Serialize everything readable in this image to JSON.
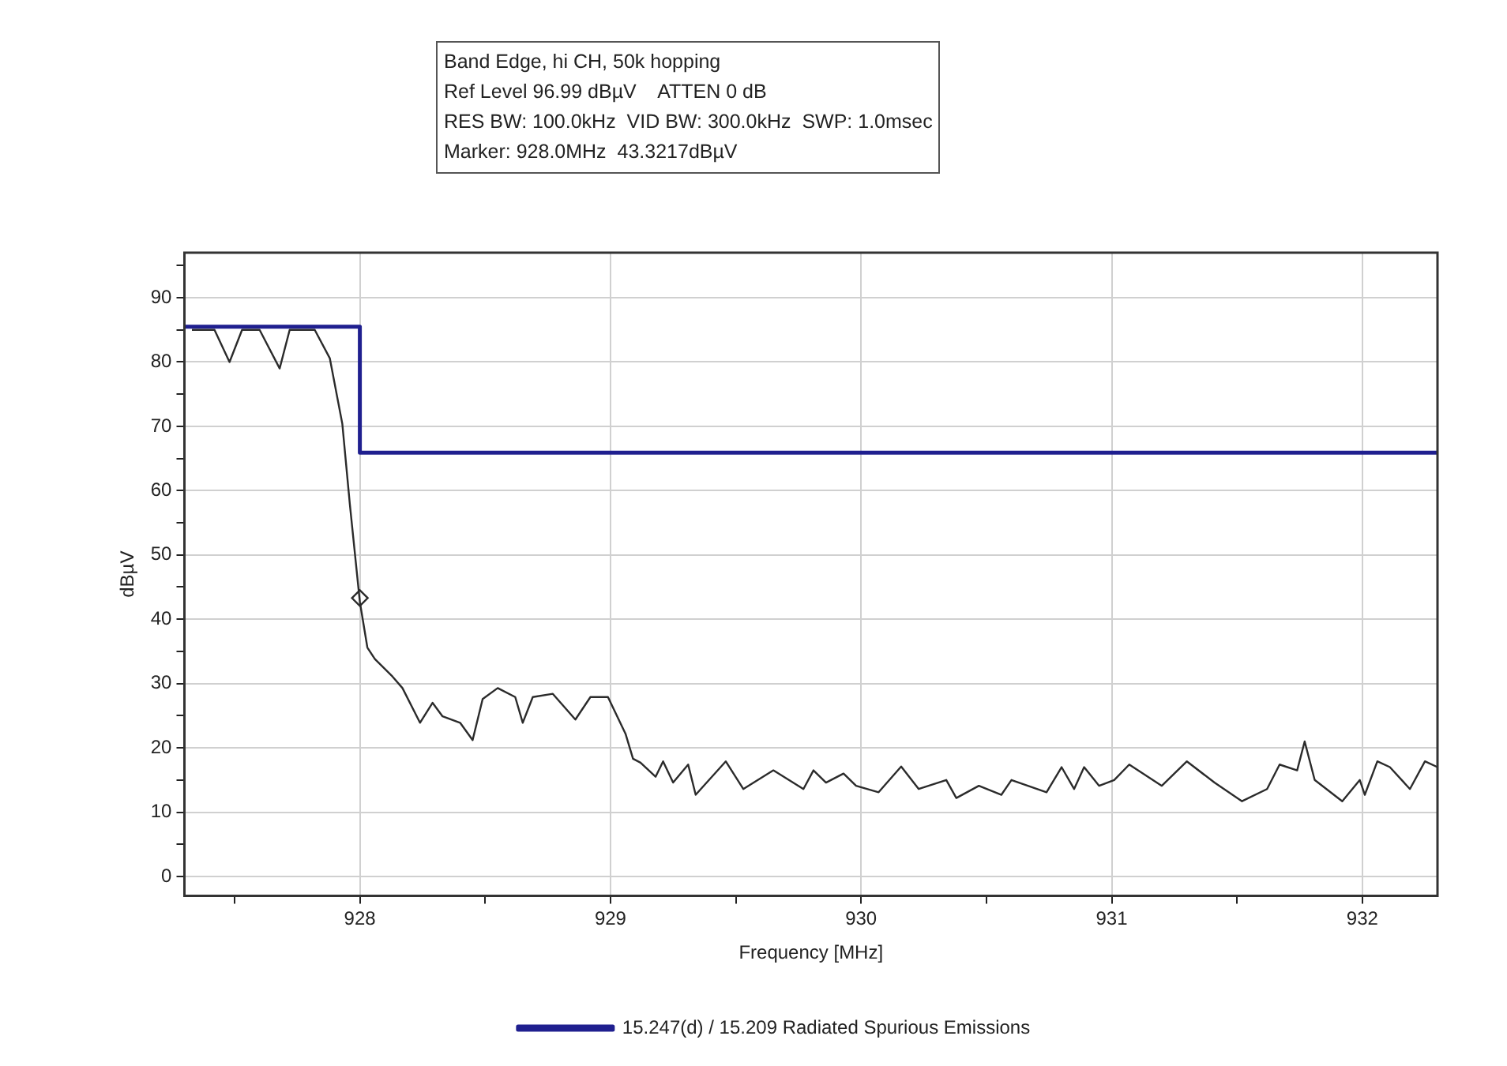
{
  "chart_data": {
    "type": "line",
    "xlabel": "Frequency [MHz]",
    "ylabel": "dBµV",
    "annotations": [
      "Band Edge, hi CH, 50k hopping",
      "Ref Level 96.99 dBµV    ATTEN 0 dB",
      "RES BW: 100.0kHz  VID BW: 300.0kHz  SWP: 1.0msec",
      "Marker: 928.0MHz  43.3217dBµV"
    ],
    "xlim": [
      927.3,
      932.3
    ],
    "ylim": [
      -3,
      97
    ],
    "xticks": [
      {
        "value": 927.5,
        "label": null
      },
      928,
      {
        "value": 928.5,
        "label": null
      },
      929,
      {
        "value": 929.5,
        "label": null
      },
      930,
      {
        "value": 930.5,
        "label": null
      },
      931,
      {
        "value": 931.5,
        "label": null
      },
      932
    ],
    "yticks": [
      0,
      {
        "value": 5,
        "label": null
      },
      10,
      {
        "value": 15,
        "label": null
      },
      20,
      {
        "value": 25,
        "label": null
      },
      30,
      {
        "value": 35,
        "label": null
      },
      40,
      {
        "value": 45,
        "label": null
      },
      50,
      {
        "value": 55,
        "label": null
      },
      60,
      {
        "value": 65,
        "label": null
      },
      70,
      {
        "value": 75,
        "label": null
      },
      80,
      {
        "value": 85,
        "label": null
      },
      90,
      {
        "value": 95,
        "label": null
      }
    ],
    "grid": true,
    "legend": "bottom",
    "line_style": "solid",
    "series": [
      {
        "color": "#2b2b2b",
        "marker": "none",
        "x": [
          927.33,
          927.42,
          927.48,
          927.53,
          927.6,
          927.68,
          927.72,
          927.82,
          927.88,
          927.93,
          927.96,
          928.0,
          928.03,
          928.06,
          928.13,
          928.17,
          928.24,
          928.29,
          928.33,
          928.4,
          928.45,
          928.49,
          928.55,
          928.62,
          928.65,
          928.69,
          928.77,
          928.86,
          928.92,
          928.99,
          929.06,
          929.09,
          929.12,
          929.18,
          929.21,
          929.25,
          929.31,
          929.34,
          929.46,
          929.53,
          929.65,
          929.77,
          929.81,
          929.86,
          929.93,
          929.98,
          930.07,
          930.16,
          930.23,
          930.34,
          930.38,
          930.47,
          930.56,
          930.6,
          930.74,
          930.8,
          930.85,
          930.89,
          930.95,
          931.01,
          931.07,
          931.2,
          931.3,
          931.41,
          931.52,
          931.62,
          931.67,
          931.74,
          931.77,
          931.81,
          931.92,
          931.99,
          932.01,
          932.06,
          932.11,
          932.19,
          932.25,
          932.3
        ],
        "values": [
          85,
          85,
          80,
          85,
          85,
          79,
          85,
          85,
          80.6,
          70.4,
          57.9,
          42.7,
          35.6,
          33.8,
          31.1,
          29.3,
          23.9,
          27,
          24.9,
          23.9,
          21.2,
          27.6,
          29.3,
          27.9,
          23.9,
          27.9,
          28.4,
          24.4,
          27.9,
          27.9,
          22.2,
          18.3,
          17.7,
          15.5,
          17.9,
          14.6,
          17.4,
          12.7,
          17.9,
          13.6,
          16.5,
          13.6,
          16.5,
          14.6,
          16,
          14.1,
          13.1,
          17.1,
          13.6,
          15,
          12.2,
          14.1,
          12.7,
          15,
          13.1,
          17,
          13.6,
          17,
          14.1,
          15,
          17.4,
          14.1,
          17.9,
          14.6,
          11.7,
          13.6,
          17.4,
          16.5,
          21,
          15,
          11.7,
          15,
          12.7,
          17.9,
          17,
          13.6,
          17.9,
          17
        ]
      },
      {
        "type": "scatter",
        "color": "#2b2b2b",
        "marker": "diamond",
        "x": [
          928.0
        ],
        "values": [
          43.3
        ]
      },
      {
        "name": "15.247(d) / 15.209 Radiated Spurious Emissions",
        "color": "#1f1f8f",
        "marker": "none",
        "x": [
          927.3,
          928,
          928,
          932.3
        ],
        "values": [
          85.5,
          85.5,
          65.9,
          65.9
        ]
      }
    ]
  }
}
